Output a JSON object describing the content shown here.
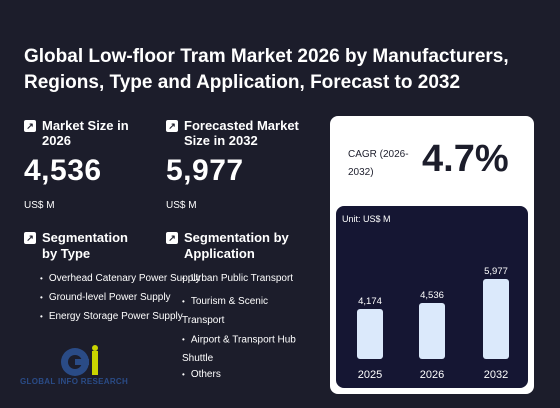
{
  "title": "Global Low-floor Tram Market 2026 by Manufacturers, Regions, Type and Application, Forecast to 2032",
  "market_size": {
    "label": "Market Size in 2026",
    "value": "4,536",
    "unit": "US$ M"
  },
  "forecast_size": {
    "label": "Forecasted Market Size in 2032",
    "value": "5,977",
    "unit": "US$ M"
  },
  "segmentation_type": {
    "label": "Segmentation by Type",
    "items": [
      "Overhead Catenary Power Supply",
      "Ground-level Power Supply",
      "Energy Storage Power Supply"
    ]
  },
  "segmentation_application": {
    "label": "Segmentation by Application",
    "items": [
      "Urban Public Transport",
      "Tourism & Scenic Transport",
      "Airport & Transport Hub Shuttle",
      "Others"
    ]
  },
  "cagr": {
    "label": "CAGR (2026-2032)",
    "value": "4.7%"
  },
  "logo_text": "GLOBAL INFO RESEARCH",
  "chart_data": {
    "type": "bar",
    "categories": [
      "2025",
      "2026",
      "2032"
    ],
    "values": [
      4174,
      4536,
      5977
    ],
    "value_labels": [
      "4,174",
      "4,536",
      "5,977"
    ],
    "unit_label": "Unit: US$ M",
    "bar_color": "#dbe9fb"
  }
}
